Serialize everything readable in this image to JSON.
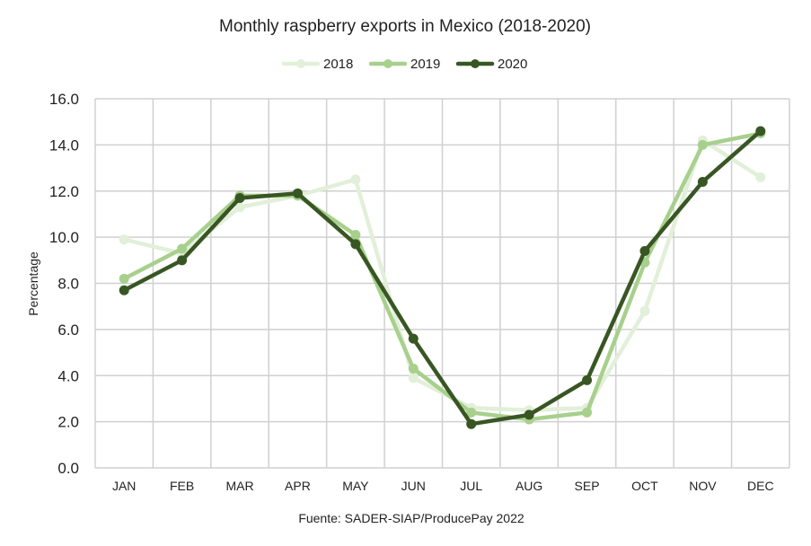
{
  "chart_data": {
    "type": "line",
    "title": "Monthly raspberry exports in Mexico (2018-2020)",
    "xlabel": "",
    "ylabel": "Percentage",
    "source": "Fuente: SADER-SIAP/ProducePay 2022",
    "categories": [
      "JAN",
      "FEB",
      "MAR",
      "APR",
      "MAY",
      "JUN",
      "JUL",
      "AUG",
      "SEP",
      "OCT",
      "NOV",
      "DEC"
    ],
    "ylim": [
      0,
      16
    ],
    "yticks": [
      "0.0",
      "2.0",
      "4.0",
      "6.0",
      "8.0",
      "10.0",
      "12.0",
      "14.0",
      "16.0"
    ],
    "ytick_values": [
      0,
      2,
      4,
      6,
      8,
      10,
      12,
      14,
      16
    ],
    "grid": true,
    "legend_position": "top-center",
    "series": [
      {
        "name": "2018",
        "color": "#e2efd9",
        "values": [
          9.9,
          9.3,
          11.3,
          11.8,
          12.5,
          3.9,
          2.6,
          2.5,
          2.6,
          6.8,
          14.2,
          12.6
        ]
      },
      {
        "name": "2019",
        "color": "#a8d08d",
        "values": [
          8.2,
          9.5,
          11.8,
          11.8,
          10.1,
          4.3,
          2.4,
          2.1,
          2.4,
          8.9,
          14.0,
          14.5
        ]
      },
      {
        "name": "2020",
        "color": "#385623",
        "values": [
          7.7,
          9.0,
          11.7,
          11.9,
          9.7,
          5.6,
          1.9,
          2.3,
          3.8,
          9.4,
          12.4,
          14.6
        ]
      }
    ]
  }
}
